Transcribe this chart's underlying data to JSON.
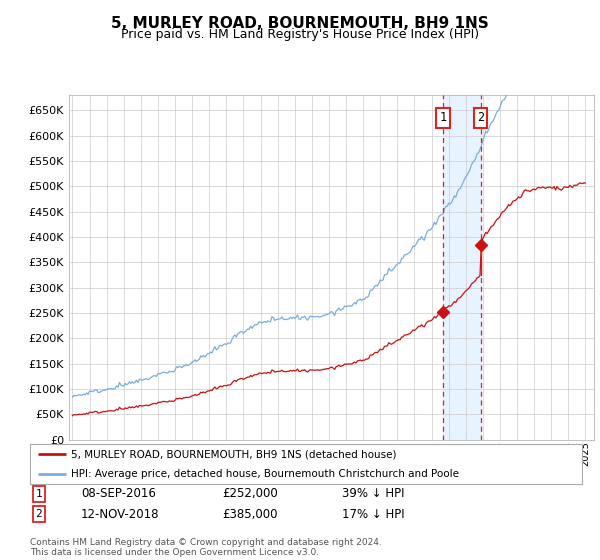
{
  "title": "5, MURLEY ROAD, BOURNEMOUTH, BH9 1NS",
  "subtitle": "Price paid vs. HM Land Registry's House Price Index (HPI)",
  "ylim": [
    0,
    680000
  ],
  "yticks": [
    0,
    50000,
    100000,
    150000,
    200000,
    250000,
    300000,
    350000,
    400000,
    450000,
    500000,
    550000,
    600000,
    650000
  ],
  "hpi_color": "#7aade0",
  "price_color": "#cc1111",
  "vline_color": "#dd2222",
  "shade_color": "#ddeeff",
  "sale1_year": 2016.69,
  "sale2_year": 2018.87,
  "sale1_price": 252000,
  "sale2_price": 385000,
  "legend_label1": "5, MURLEY ROAD, BOURNEMOUTH, BH9 1NS (detached house)",
  "legend_label2": "HPI: Average price, detached house, Bournemouth Christchurch and Poole",
  "table_row1": [
    "1",
    "08-SEP-2016",
    "£252,000",
    "39% ↓ HPI"
  ],
  "table_row2": [
    "2",
    "12-NOV-2018",
    "£385,000",
    "17% ↓ HPI"
  ],
  "footer": "Contains HM Land Registry data © Crown copyright and database right 2024.\nThis data is licensed under the Open Government Licence v3.0.",
  "background_color": "#ffffff",
  "grid_color": "#cccccc"
}
